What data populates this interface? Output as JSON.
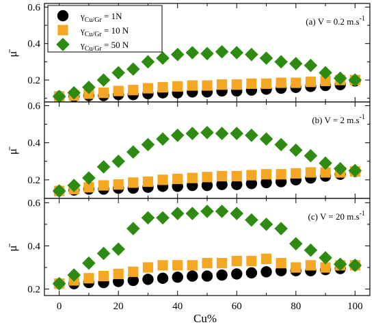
{
  "chart_data": {
    "type": "scatter",
    "xlabel": "Cu%",
    "ylabel": "μ̄",
    "xlim": [
      -5,
      105
    ],
    "x_ticks": [
      0,
      20,
      40,
      60,
      80,
      100
    ],
    "y_ticks": [
      0.2,
      0.4,
      0.6
    ],
    "x": [
      0,
      5,
      10,
      15,
      20,
      25,
      30,
      35,
      40,
      45,
      50,
      55,
      60,
      65,
      70,
      75,
      80,
      85,
      90,
      95,
      100
    ],
    "legend": {
      "position": "top-left",
      "entries": [
        {
          "symbol": "γ",
          "subscript": "Cu/Gr",
          "suffix": " = 1N",
          "marker": "circle",
          "color": "#000000"
        },
        {
          "symbol": "γ",
          "subscript": "Cu/Gr",
          "suffix": " = 10 N",
          "marker": "square",
          "color": "#f5a623"
        },
        {
          "symbol": "γ",
          "subscript": "Cu/Gr",
          "suffix": " = 50 N",
          "marker": "diamond",
          "color": "#2e8b12"
        }
      ]
    },
    "panels": [
      {
        "annotation": "(a) V = 0.2 m.s",
        "annotation_sup": "-1",
        "ylim": [
          0.08,
          0.62
        ],
        "series": [
          {
            "values": [
              0.11,
              0.11,
              0.115,
              0.115,
              0.12,
              0.12,
              0.125,
              0.13,
              0.13,
              0.135,
              0.135,
              0.14,
              0.14,
              0.145,
              0.15,
              0.155,
              0.16,
              0.165,
              0.17,
              0.175,
              0.195
            ]
          },
          {
            "values": [
              0.11,
              0.115,
              0.125,
              0.13,
              0.14,
              0.145,
              0.155,
              0.16,
              0.165,
              0.17,
              0.17,
              0.175,
              0.175,
              0.18,
              0.18,
              0.185,
              0.185,
              0.19,
              0.195,
              0.2,
              0.2
            ]
          },
          {
            "values": [
              0.11,
              0.13,
              0.16,
              0.2,
              0.24,
              0.26,
              0.3,
              0.32,
              0.34,
              0.35,
              0.345,
              0.355,
              0.35,
              0.34,
              0.32,
              0.3,
              0.29,
              0.28,
              0.24,
              0.21,
              0.2
            ]
          }
        ]
      },
      {
        "annotation": "(b) V = 2 m.s",
        "annotation_sup": "-1",
        "ylim": [
          0.1,
          0.62
        ],
        "series": [
          {
            "values": [
              0.14,
              0.145,
              0.15,
              0.15,
              0.155,
              0.155,
              0.16,
              0.165,
              0.165,
              0.17,
              0.17,
              0.175,
              0.175,
              0.18,
              0.185,
              0.19,
              0.2,
              0.21,
              0.22,
              0.23,
              0.245
            ]
          },
          {
            "values": [
              0.14,
              0.15,
              0.16,
              0.17,
              0.175,
              0.185,
              0.19,
              0.2,
              0.205,
              0.21,
              0.215,
              0.22,
              0.22,
              0.225,
              0.23,
              0.23,
              0.235,
              0.24,
              0.24,
              0.24,
              0.245
            ]
          },
          {
            "values": [
              0.14,
              0.17,
              0.21,
              0.27,
              0.3,
              0.35,
              0.39,
              0.42,
              0.44,
              0.45,
              0.455,
              0.45,
              0.45,
              0.44,
              0.42,
              0.39,
              0.36,
              0.33,
              0.29,
              0.26,
              0.25
            ]
          }
        ]
      },
      {
        "annotation": "(c) V = 20 m.s",
        "annotation_sup": "-1",
        "ylim": [
          0.17,
          0.62
        ],
        "series": [
          {
            "values": [
              0.225,
              0.225,
              0.23,
              0.23,
              0.235,
              0.24,
              0.245,
              0.25,
              0.255,
              0.26,
              0.26,
              0.265,
              0.27,
              0.275,
              0.28,
              0.285,
              0.285,
              0.285,
              0.29,
              0.295,
              0.31
            ]
          },
          {
            "values": [
              0.225,
              0.24,
              0.25,
              0.26,
              0.27,
              0.28,
              0.3,
              0.31,
              0.31,
              0.31,
              0.32,
              0.32,
              0.33,
              0.33,
              0.34,
              0.32,
              0.3,
              0.31,
              0.3,
              0.31,
              0.31
            ]
          },
          {
            "values": [
              0.225,
              0.265,
              0.32,
              0.365,
              0.385,
              0.48,
              0.53,
              0.53,
              0.55,
              0.55,
              0.56,
              0.56,
              0.55,
              0.52,
              0.5,
              0.48,
              0.41,
              0.38,
              0.345,
              0.315,
              0.31
            ]
          }
        ]
      }
    ]
  }
}
